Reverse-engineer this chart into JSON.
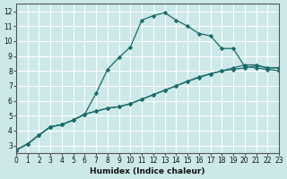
{
  "xlabel": "Humidex (Indice chaleur)",
  "ylabel": "",
  "bg_color": "#cce8e8",
  "grid_color": "#ffffff",
  "line_color": "#1a6b6b",
  "xlim": [
    0,
    23
  ],
  "ylim": [
    2.5,
    12.5
  ],
  "xticks": [
    0,
    1,
    2,
    3,
    4,
    5,
    6,
    7,
    8,
    9,
    10,
    11,
    12,
    13,
    14,
    15,
    16,
    17,
    18,
    19,
    20,
    21,
    22,
    23
  ],
  "yticks": [
    3,
    4,
    5,
    6,
    7,
    8,
    9,
    10,
    11,
    12
  ],
  "series": [
    {
      "x": [
        0,
        1,
        2,
        3,
        4,
        5,
        6,
        7,
        8,
        9,
        10,
        11,
        12,
        13,
        14,
        15,
        16,
        17,
        18,
        19,
        20,
        21,
        22,
        23
      ],
      "y": [
        2.7,
        3.1,
        3.7,
        4.25,
        4.4,
        4.7,
        5.1,
        6.5,
        8.1,
        8.9,
        9.6,
        11.4,
        11.7,
        11.9,
        11.4,
        11.0,
        10.5,
        10.35,
        9.5,
        9.5,
        8.3,
        8.2,
        8.1,
        8.0
      ]
    },
    {
      "x": [
        0,
        1,
        2,
        3,
        4,
        5,
        6,
        7,
        8,
        9,
        10,
        11,
        12,
        13,
        14,
        15,
        16,
        17,
        18,
        19,
        20,
        21,
        22,
        23
      ],
      "y": [
        2.7,
        3.1,
        3.7,
        4.25,
        4.4,
        4.7,
        5.1,
        5.3,
        5.5,
        5.6,
        5.8,
        6.1,
        6.4,
        6.7,
        7.0,
        7.3,
        7.6,
        7.8,
        8.0,
        8.2,
        8.4,
        8.4,
        8.2,
        8.2
      ]
    },
    {
      "x": [
        0,
        1,
        2,
        3,
        4,
        5,
        6,
        7,
        8,
        9,
        10,
        11,
        12,
        13,
        14,
        15,
        16,
        17,
        18,
        19,
        20,
        21,
        22,
        23
      ],
      "y": [
        2.7,
        3.1,
        3.7,
        4.25,
        4.4,
        4.7,
        5.1,
        5.3,
        5.5,
        5.6,
        5.8,
        6.1,
        6.4,
        6.7,
        7.0,
        7.3,
        7.55,
        7.8,
        8.0,
        8.1,
        8.2,
        8.35,
        8.2,
        8.2
      ]
    }
  ]
}
